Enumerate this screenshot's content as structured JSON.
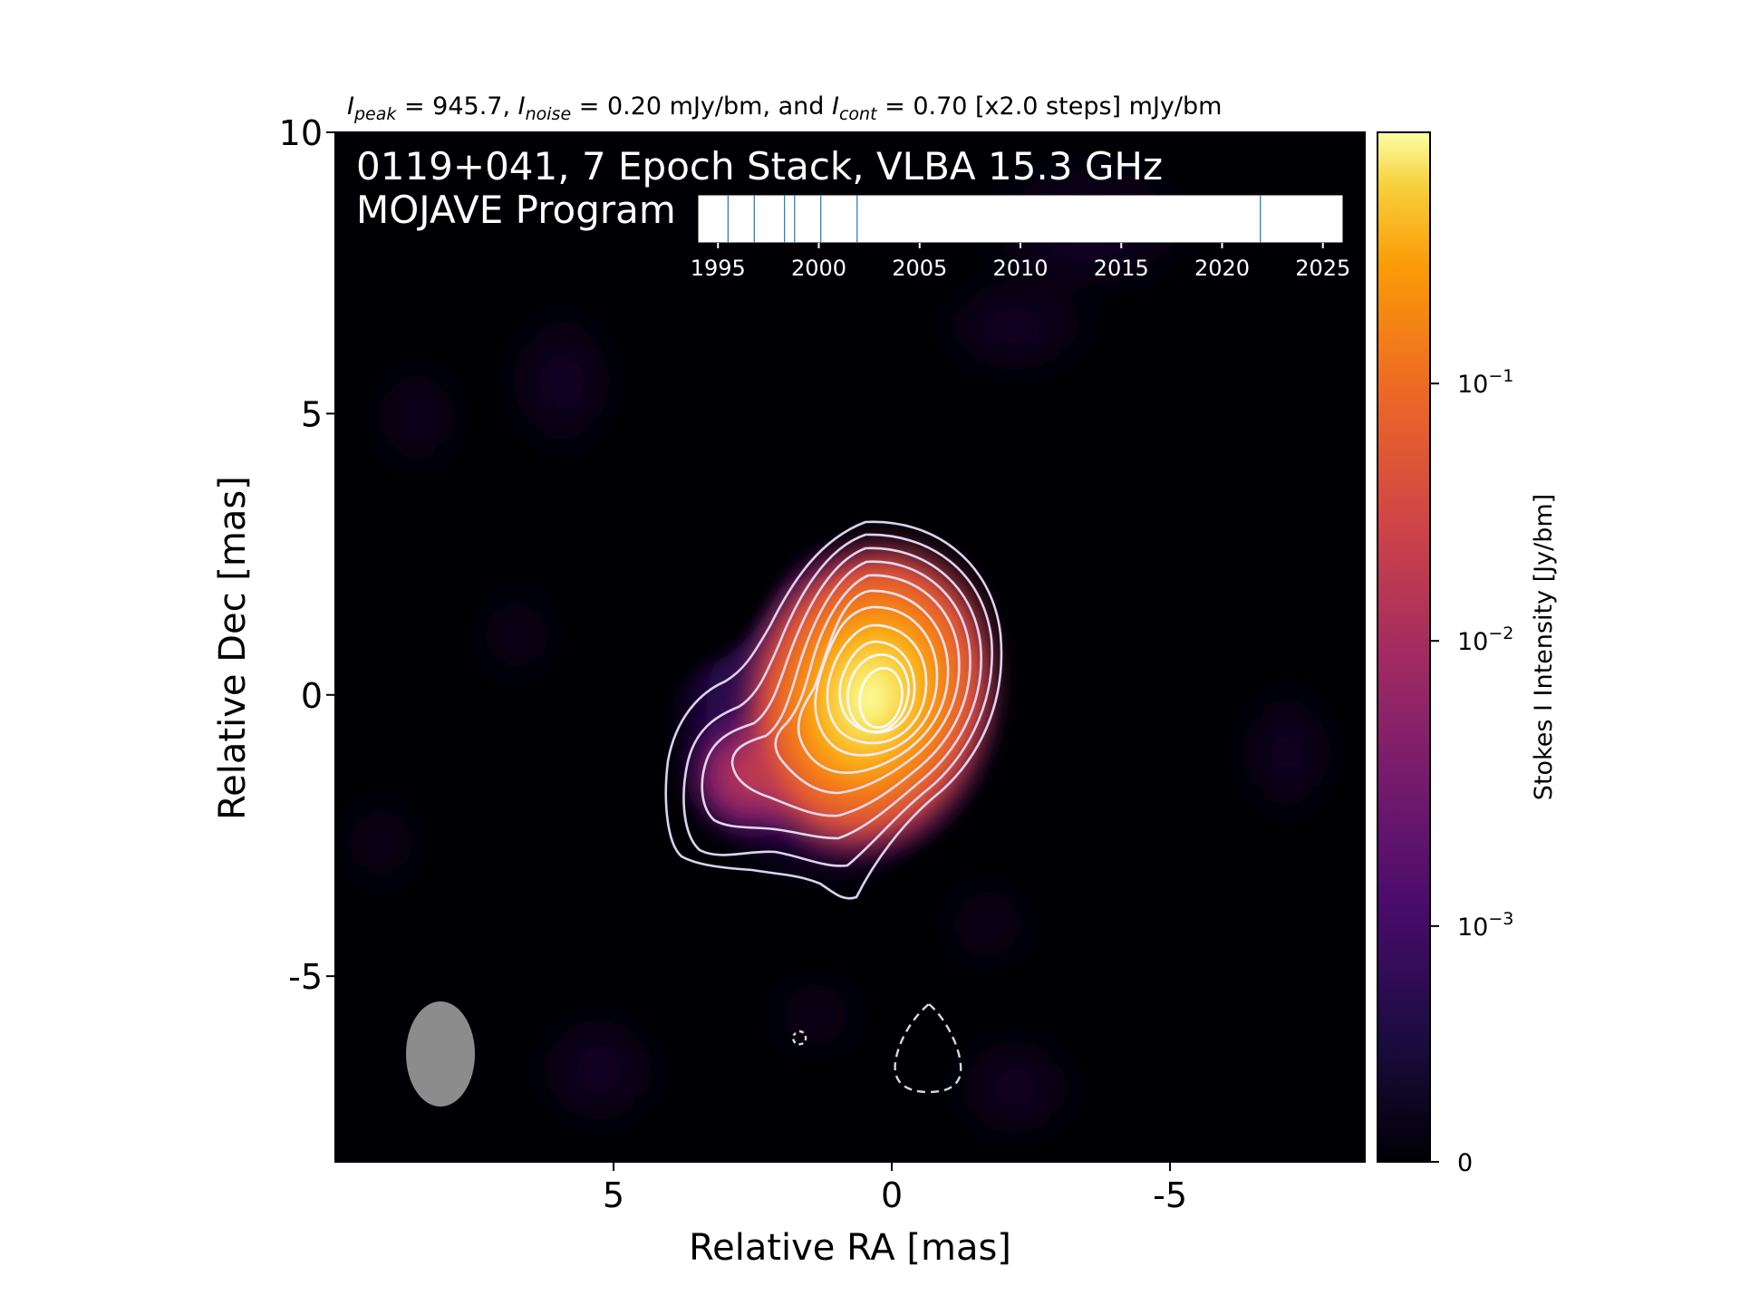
{
  "header": {
    "peak_value": "945.7",
    "noise_value": "0.20 mJy/bm",
    "cont_value": "0.70 [x2.0 steps] mJy/bm",
    "peak_sub": "peak",
    "noise_sub": "noise",
    "cont_sub": "cont",
    "and_word": ", and"
  },
  "overlay": {
    "line1": "0119+041, 7 Epoch Stack, VLBA 15.3 GHz",
    "line2": "MOJAVE Program"
  },
  "epochs": {
    "years": [
      1995.5,
      1996.8,
      1998.3,
      1998.8,
      2000.1,
      2001.9,
      2021.9
    ],
    "xlim": [
      1994.0,
      2026.0
    ],
    "tick_labels": [
      "1995",
      "2000",
      "2005",
      "2010",
      "2015",
      "2020",
      "2025"
    ]
  },
  "chart_data": {
    "type": "heatmap",
    "xlabel": "Relative RA [mas]",
    "ylabel": "Relative Dec [mas]",
    "xlim": [
      10,
      -8.5
    ],
    "ylim": [
      -8.3,
      10
    ],
    "x_ticks": [
      5,
      0,
      -5
    ],
    "x_tick_labels": [
      "5",
      "0",
      "-5"
    ],
    "y_ticks": [
      10,
      5,
      0,
      -5
    ],
    "y_tick_labels": [
      "10",
      "5",
      "0",
      "-5"
    ],
    "peak_position": [
      0,
      0
    ],
    "contour_levels_count": 11,
    "beam": {
      "x": 7.9,
      "y": -6.4,
      "major_mas": 1.85,
      "minor_mas": 1.2,
      "pa_deg": 0
    },
    "negative_contours": [
      {
        "x": -0.8,
        "y": -6.3
      },
      {
        "x": 1.6,
        "y": -6.1
      }
    ],
    "colorbar": {
      "label": "Stokes I Intensity [Jy/bm]",
      "scale": "log",
      "tick_labels": [
        "0",
        "10",
        "10",
        "10"
      ],
      "tick_exponents": [
        "",
        "−3",
        "−2",
        "−1"
      ],
      "tick_fractions": [
        0.0,
        0.229,
        0.506,
        0.756
      ]
    },
    "colormap": "inferno"
  }
}
